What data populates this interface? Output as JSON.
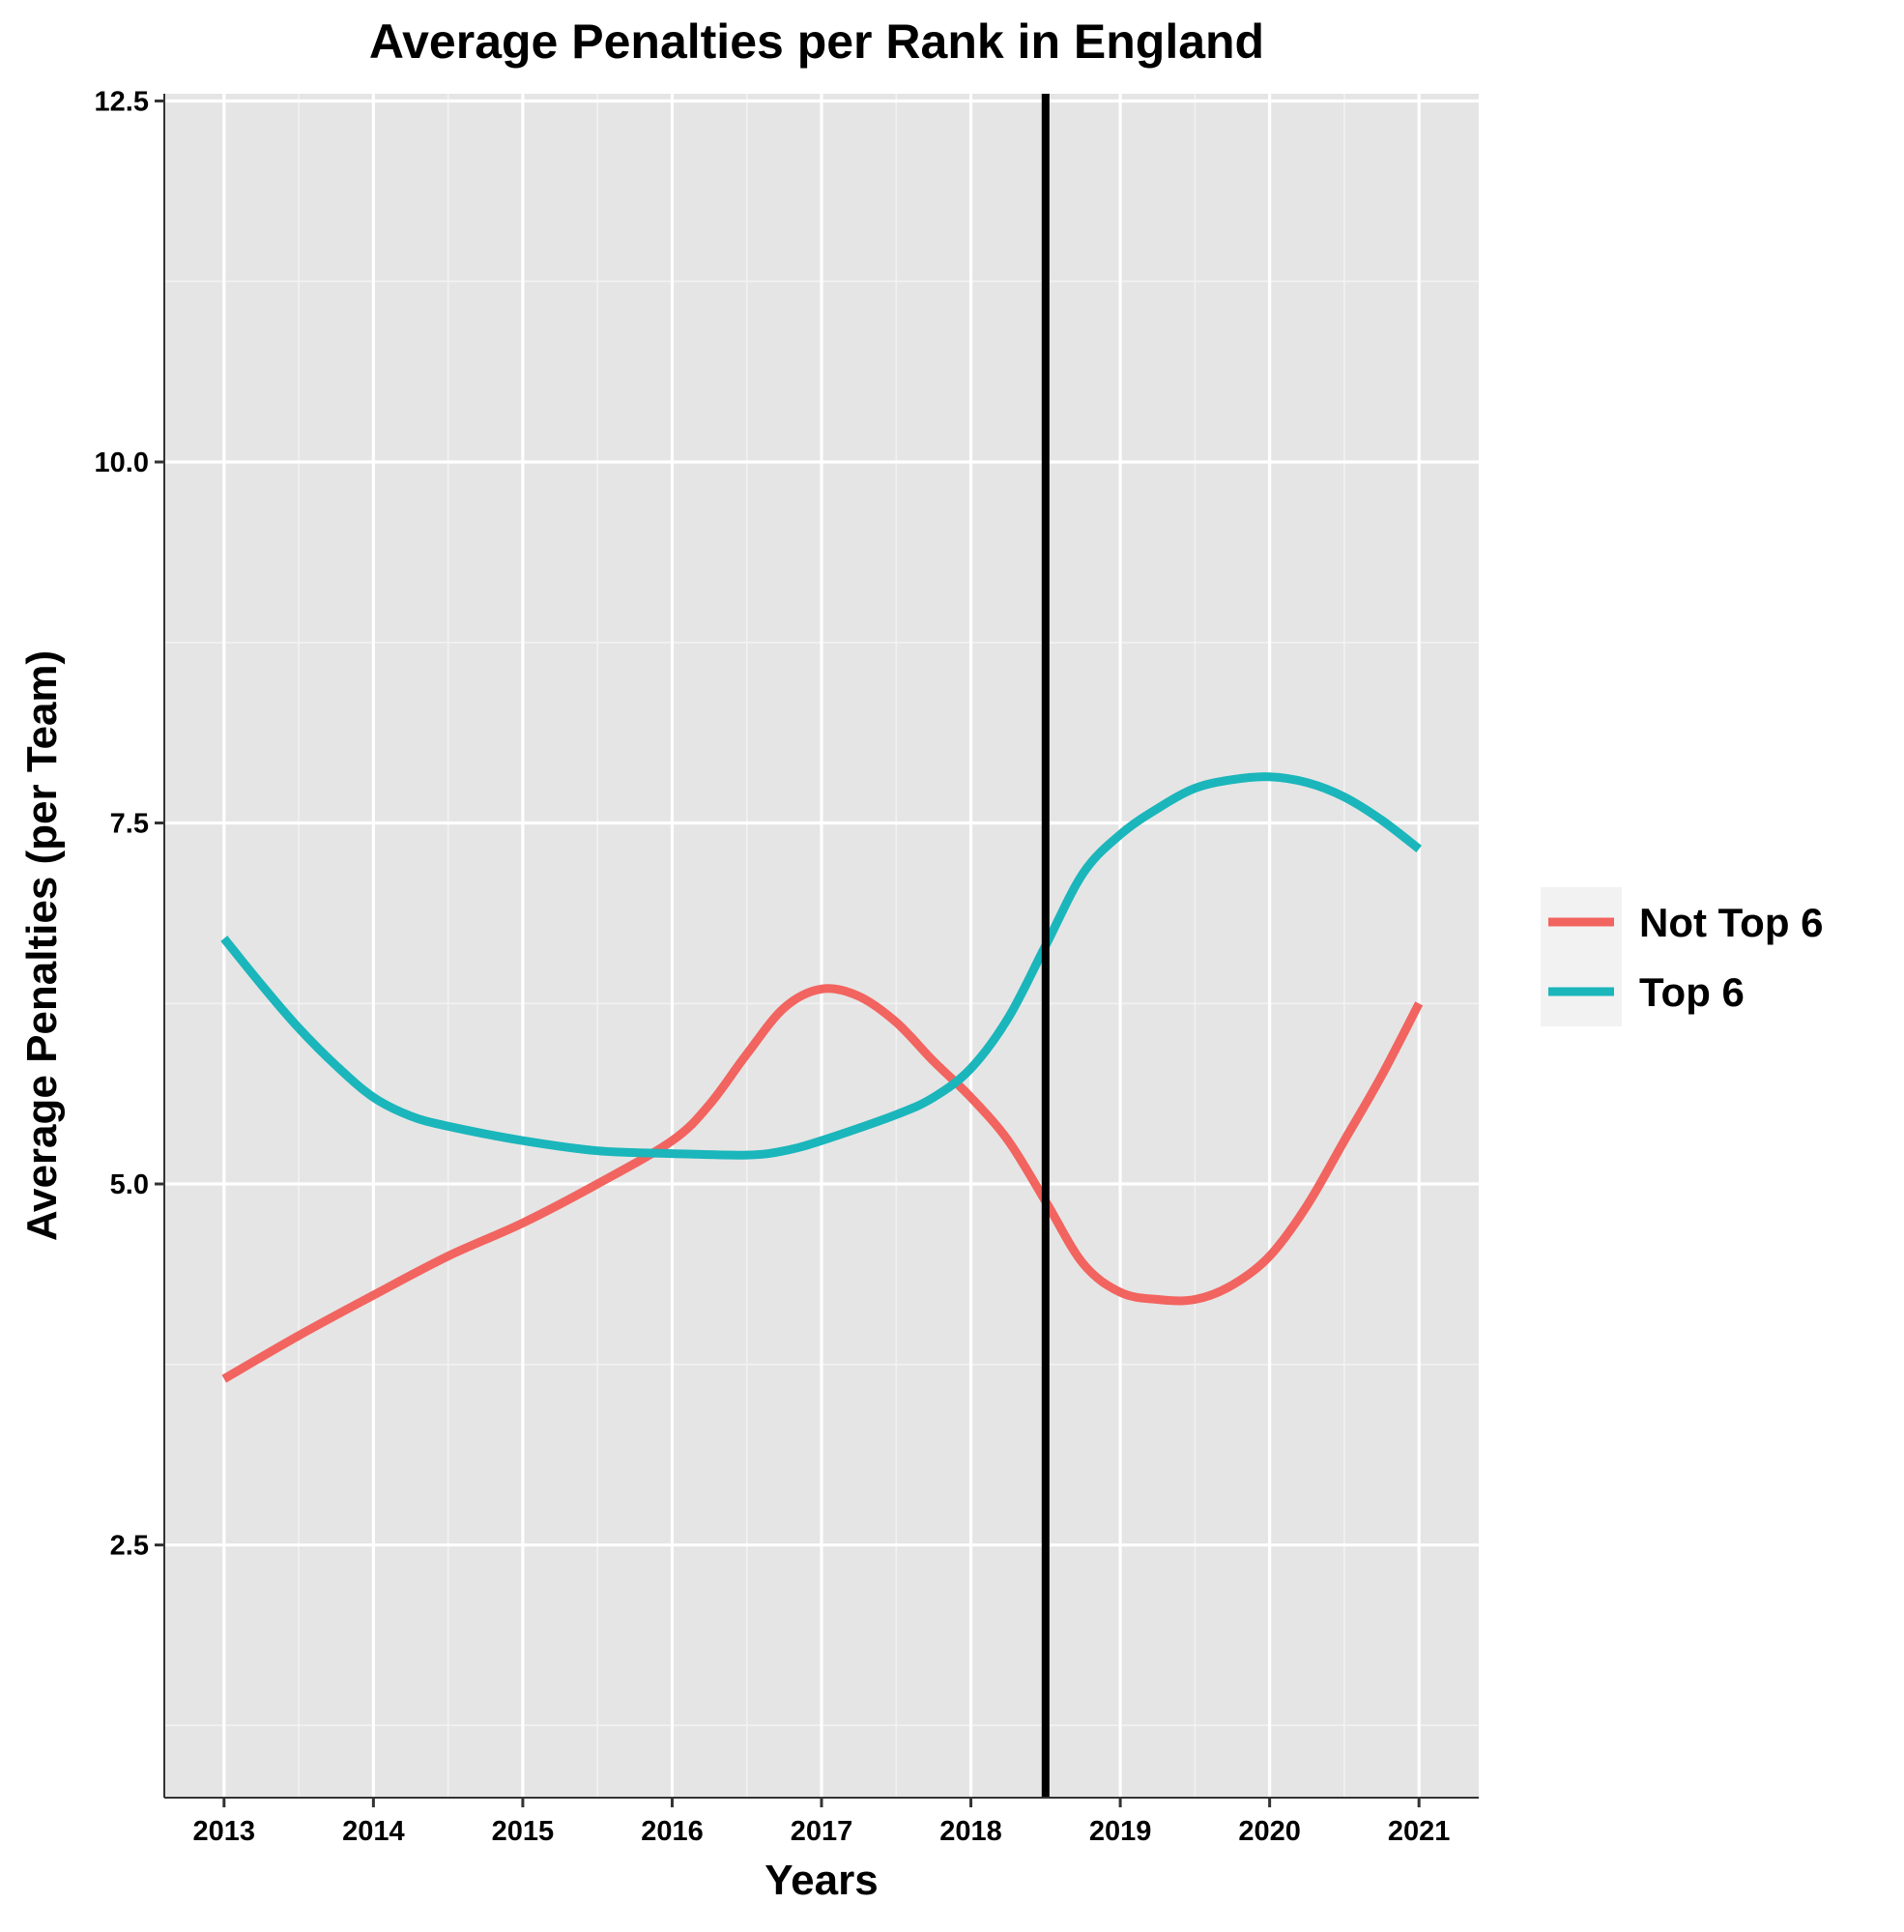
{
  "chart_data": {
    "type": "line",
    "title": "Average Penalties per Rank in England",
    "xlabel": "Years",
    "ylabel": "Average Penalties (per Team)",
    "xlim": [
      2012.6,
      2021.4
    ],
    "ylim": [
      0.75,
      12.55
    ],
    "x_ticks": [
      2013,
      2014,
      2015,
      2016,
      2017,
      2018,
      2019,
      2020,
      2021
    ],
    "x_tick_labels": [
      "2013",
      "2014",
      "2015",
      "2016",
      "2017",
      "2018",
      "2019",
      "2020",
      "2021"
    ],
    "y_ticks": [
      2.5,
      5.0,
      7.5,
      10.0,
      12.5
    ],
    "y_tick_labels": [
      "2.5",
      "5.0",
      "7.5",
      "10.0",
      "12.5"
    ],
    "grid": true,
    "legend_position": "right",
    "background": "#e5e5e5",
    "vline": {
      "x": 2018.5,
      "color": "#000000"
    },
    "series": [
      {
        "name": "Not Top 6",
        "color": "#f2645f",
        "x": [
          2013,
          2013.5,
          2014,
          2014.5,
          2015,
          2015.5,
          2016,
          2016.25,
          2016.5,
          2016.75,
          2017,
          2017.25,
          2017.5,
          2017.75,
          2018,
          2018.25,
          2018.5,
          2018.75,
          2019,
          2019.25,
          2019.5,
          2019.75,
          2020,
          2020.25,
          2020.5,
          2020.75,
          2021
        ],
        "values": [
          3.65,
          3.95,
          4.23,
          4.5,
          4.73,
          5.0,
          5.3,
          5.55,
          5.9,
          6.22,
          6.35,
          6.3,
          6.12,
          5.85,
          5.6,
          5.3,
          4.88,
          4.45,
          4.25,
          4.2,
          4.2,
          4.3,
          4.5,
          4.85,
          5.3,
          5.75,
          6.25
        ]
      },
      {
        "name": "Top 6",
        "color": "#1ab6bb",
        "x": [
          2013,
          2013.25,
          2013.5,
          2013.75,
          2014,
          2014.25,
          2014.5,
          2015,
          2015.5,
          2016,
          2016.5,
          2016.75,
          2017,
          2017.5,
          2017.75,
          2018,
          2018.25,
          2018.5,
          2018.75,
          2019,
          2019.25,
          2019.5,
          2019.75,
          2020,
          2020.25,
          2020.5,
          2020.75,
          2021
        ],
        "values": [
          6.7,
          6.38,
          6.08,
          5.82,
          5.6,
          5.47,
          5.4,
          5.3,
          5.23,
          5.21,
          5.2,
          5.23,
          5.3,
          5.48,
          5.6,
          5.8,
          6.15,
          6.65,
          7.15,
          7.42,
          7.6,
          7.74,
          7.8,
          7.82,
          7.78,
          7.68,
          7.52,
          7.32
        ]
      }
    ]
  }
}
